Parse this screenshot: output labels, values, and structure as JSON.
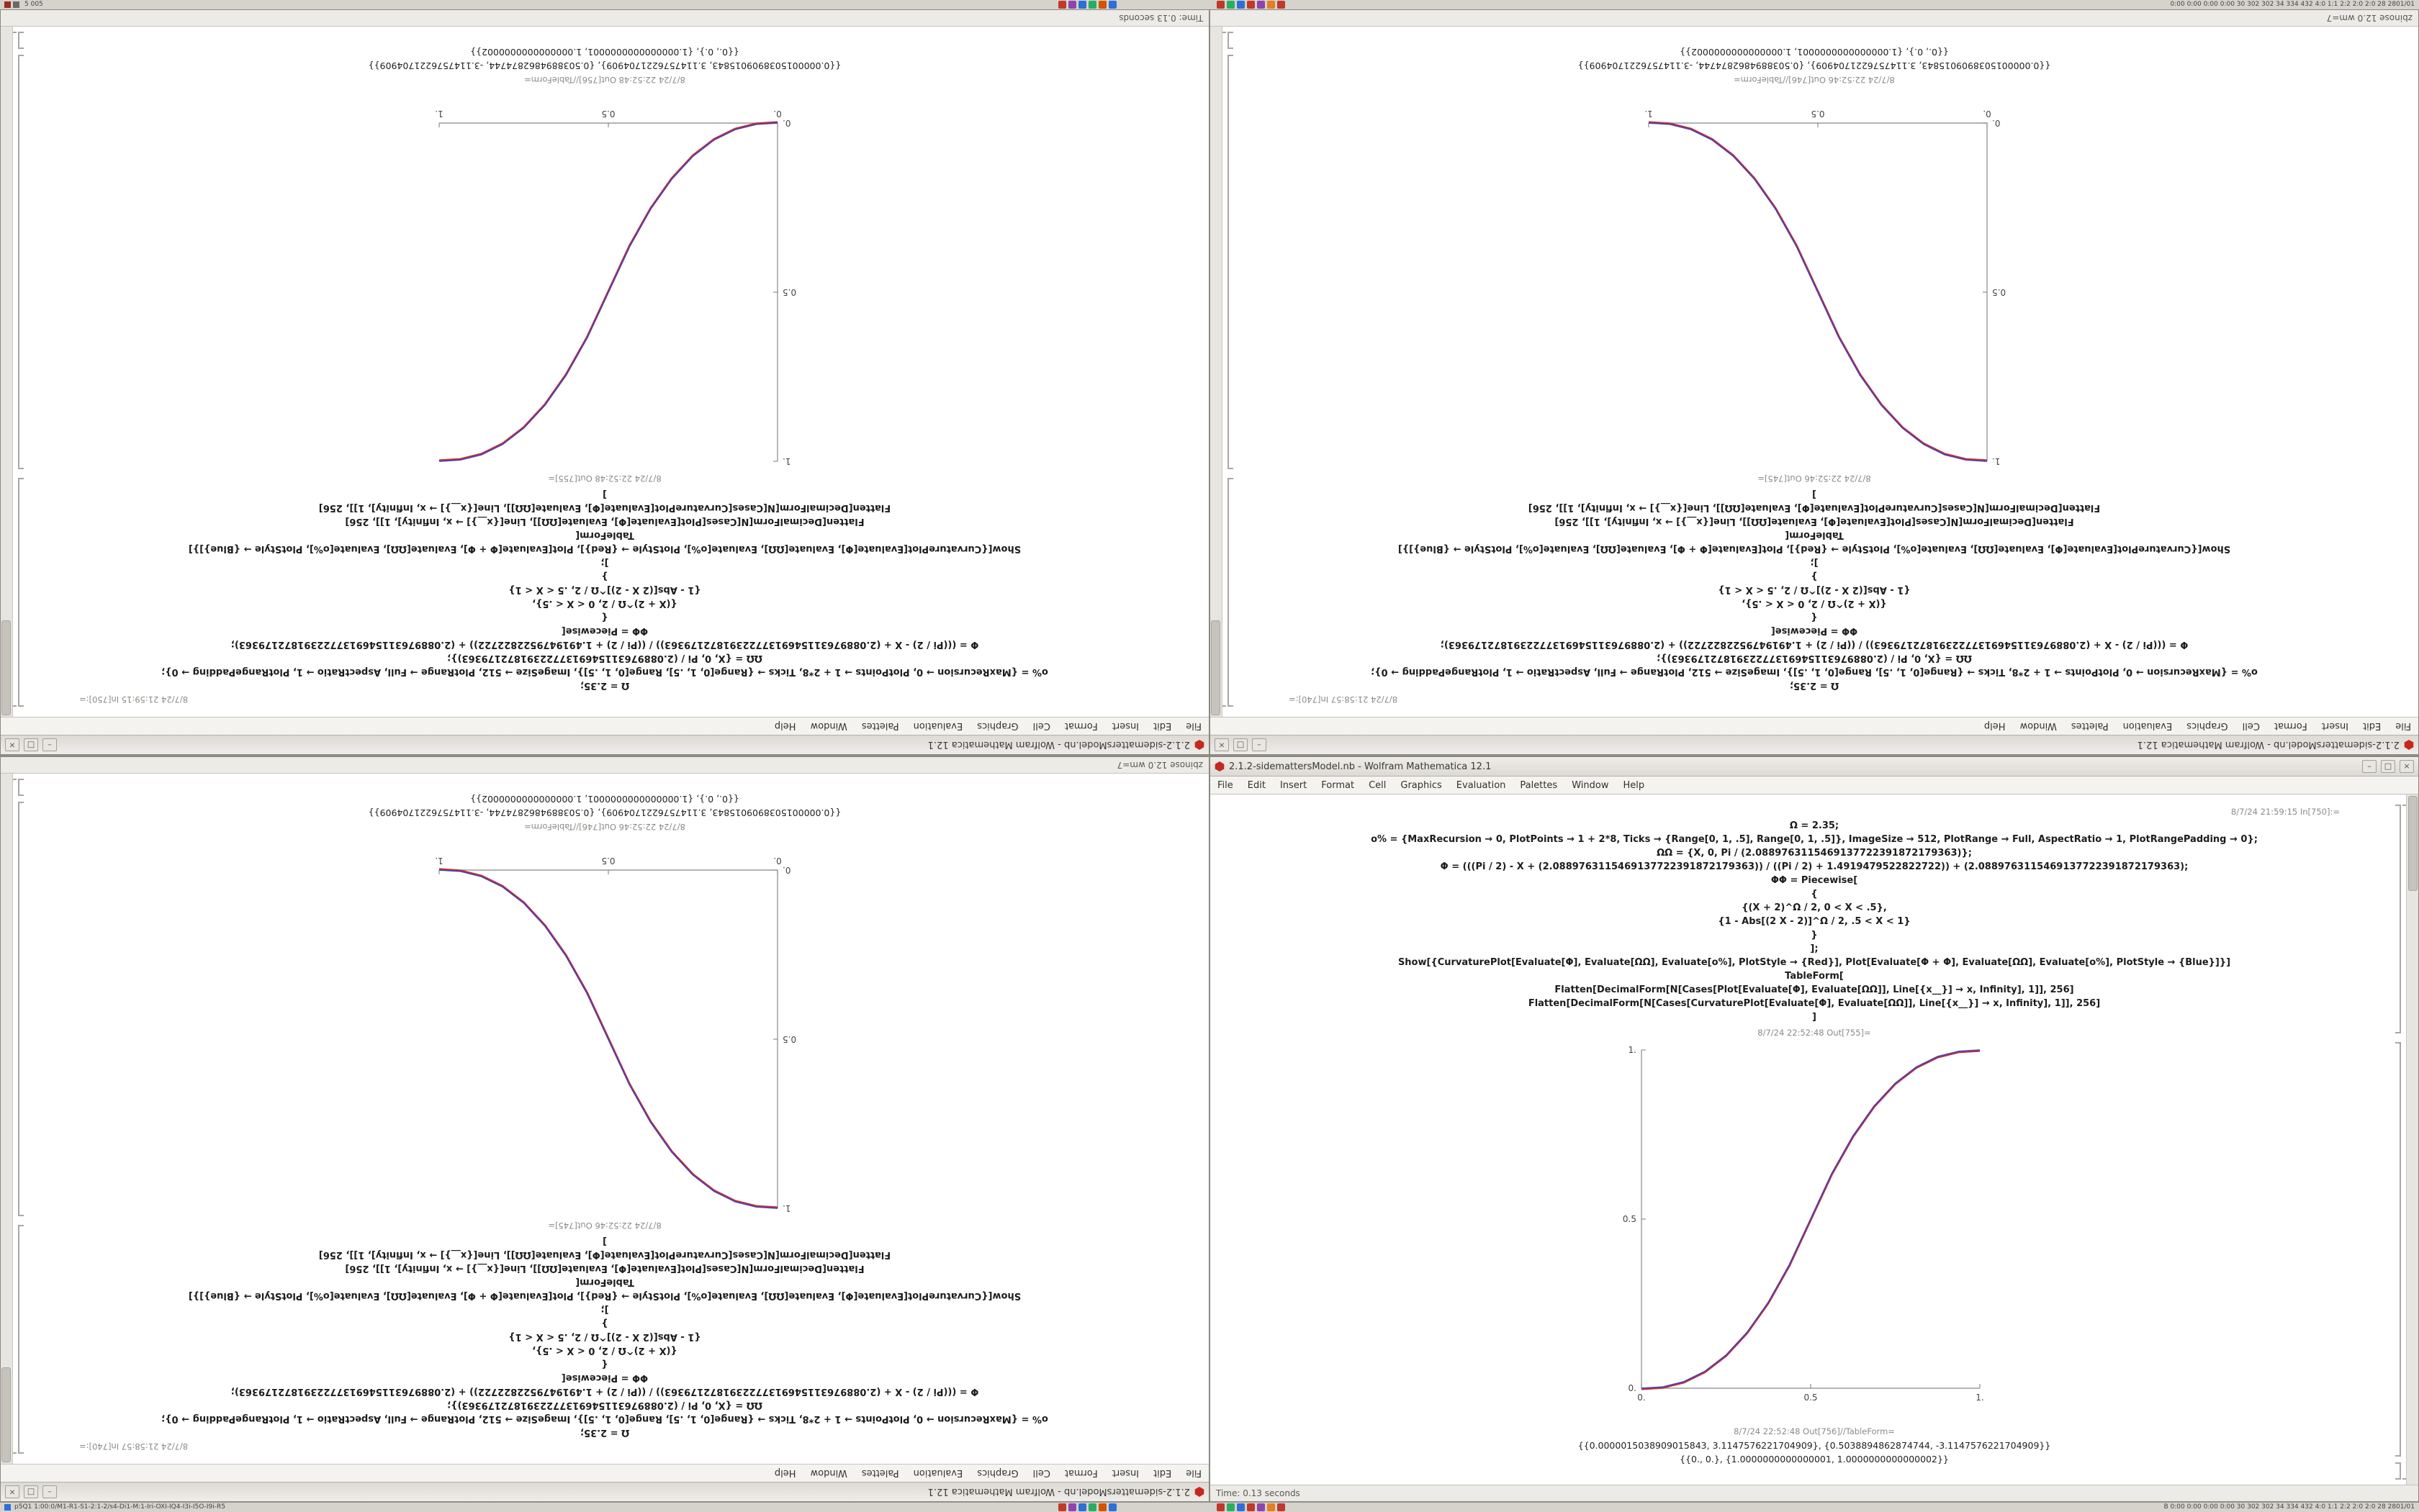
{
  "chrome": {
    "minimize": "–",
    "maximize": "□",
    "close": "×",
    "menu": [
      "File",
      "Edit",
      "Insert",
      "Format",
      "Cell",
      "Graphics",
      "Evaluation",
      "Palettes",
      "Window",
      "Help"
    ]
  },
  "taskbar_top": {
    "left_text": "5 005",
    "right_text": "0:00 0:00 0:00 0:00  30 302 302 34 334 432  4:0 1:1 2:2 2:0 2:0  28 2801/01",
    "tray1": [
      "#c0392b",
      "#8e44ad",
      "#2e6fd8",
      "#27ae60",
      "#d35400",
      "#2e6fd8"
    ],
    "tray2": [
      "#c0392b",
      "#27ae60",
      "#2e6fd8",
      "#c0392b",
      "#8e44ad",
      "#e67e22",
      "#c0392b"
    ]
  },
  "taskbar_bottom": {
    "left_text": "p5Q1  1:00:0/M1-R1-S1-2:1-2/s4-Di1-M:1-Iri-OXI-IQ4-I3i-I5O-I9i-R5",
    "right_text": "B 0:00 0:00 0:00 0:00  30 302 302 34 334 432  4:0 1:1 2:2 2:0 2:0  28 2801/01",
    "tray1": [
      "#c0392b",
      "#8e44ad",
      "#2e6fd8",
      "#27ae60",
      "#d35400",
      "#2e6fd8"
    ],
    "tray2": [
      "#c0392b",
      "#27ae60",
      "#2e6fd8",
      "#c0392b",
      "#8e44ad",
      "#e67e22",
      "#c0392b"
    ]
  },
  "notebook_a": {
    "title": "2.1.2-sidemattersModel.nb - Wolfram Mathematica 12.1",
    "in_header": "8/7/24 21:59:15 In[750]:=",
    "code": [
      "Ω = 2.35;",
      "o% = {MaxRecursion → 0, PlotPoints → 1 + 2*8, Ticks → {Range[0, 1, .5], Range[0, 1, .5]}, ImageSize → 512, PlotRange → Full, AspectRatio → 1, PlotRangePadding → 0};",
      "ΩΩ = {X, 0, Pi / (2.0889763115469137722391872179363)};",
      "Φ = (((Pi / 2) - X + (2.0889763115469137722391872179363)) / ((Pi / 2) + 1.4919479522822722)) + (2.0889763115469137722391872179363);",
      "ΦΦ = Piecewise[",
      "{",
      "{(X + 2)^Ω / 2, 0 < X < .5},",
      "{1 - Abs[(2 X - 2)]^Ω / 2, .5 < X < 1}",
      "}",
      "];",
      "Show[{CurvaturePlot[Evaluate[Φ], Evaluate[ΩΩ], Evaluate[o%], PlotStyle → {Red}], Plot[Evaluate[Φ + Φ], Evaluate[ΩΩ], Evaluate[o%], PlotStyle → {Blue}]}]",
      "TableForm[",
      "Flatten[DecimalForm[N[Cases[Plot[Evaluate[Φ], Evaluate[ΩΩ]], Line[{x__}] → x, Infinity], 1]], 256]",
      "Flatten[DecimalForm[N[Cases[CurvaturePlot[Evaluate[Φ], Evaluate[ΩΩ]], Line[{x__}] → x, Infinity], 1]], 256]",
      "]"
    ],
    "out1_label": "8/7/24 22:52:48 Out[755]=",
    "out2_label": "8/7/24 22:52:48 Out[756]//TableForm=",
    "out_lines": [
      "{{0.0000015038909015843, 3.1147576221704909}, {0.5038894862874744, -3.1147576221704909}}",
      "{{0., 0.}, {1.0000000000000001, 1.0000000000000002}}"
    ],
    "status": "Time: 0.13 seconds",
    "plot": {
      "type": "line",
      "direction": "ascending",
      "xticks": [
        "0.",
        "0.5",
        "1."
      ],
      "yticks": [
        "0.",
        "0.5",
        "1."
      ],
      "tick_values": [
        0,
        0.5,
        1
      ],
      "series_styles": [
        "Red",
        "Blue"
      ],
      "red": "#c23030",
      "blue": "#4040c2",
      "points": [
        [
          0,
          0
        ],
        [
          0.0625,
          0.0038
        ],
        [
          0.125,
          0.0193
        ],
        [
          0.1875,
          0.0499
        ],
        [
          0.25,
          0.0981
        ],
        [
          0.3125,
          0.1657
        ],
        [
          0.375,
          0.2543
        ],
        [
          0.4375,
          0.3653
        ],
        [
          0.5,
          0.5
        ],
        [
          0.5625,
          0.6347
        ],
        [
          0.625,
          0.7457
        ],
        [
          0.6875,
          0.8343
        ],
        [
          0.75,
          0.9019
        ],
        [
          0.8125,
          0.9501
        ],
        [
          0.875,
          0.9807
        ],
        [
          0.9375,
          0.9962
        ],
        [
          1,
          1
        ]
      ]
    }
  },
  "notebook_b": {
    "title": "2.1.2-sidemattersModel.nb - Wolfram Mathematica 12.1",
    "in_header": "8/7/24 21:58:57 In[740]:=",
    "code": [
      "Ω = 2.35;",
      "o% = {MaxRecursion → 0, PlotPoints → 1 + 2*8, Ticks → {Range[0, 1, .5], Range[0, 1, .5]}, ImageSize → 512, PlotRange → Full, AspectRatio → 1, PlotRangePadding → 0};",
      "ΩΩ = {X, 0, Pi / (2.0889763115469137722391872179363)};",
      "Φ = (((Pi / 2) - X + (2.0889763115469137722391872179363)) / ((Pi / 2) + 1.4919479522822722)) + (2.0889763115469137722391872179363);",
      "ΦΦ = Piecewise[",
      "{",
      "{(X + 2)^Ω / 2, 0 < X < .5},",
      "{1 - Abs[(2 X - 2)]^Ω / 2, .5 < X < 1}",
      "}",
      "];",
      "Show[{CurvaturePlot[Evaluate[Φ], Evaluate[ΩΩ], Evaluate[o%], PlotStyle → {Red}], Plot[Evaluate[Φ + Φ], Evaluate[ΩΩ], Evaluate[o%], PlotStyle → {Blue}]}]",
      "TableForm[",
      "Flatten[DecimalForm[N[Cases[Plot[Evaluate[Φ], Evaluate[ΩΩ]], Line[{x__}] → x, Infinity], 1]], 256]",
      "Flatten[DecimalForm[N[Cases[CurvaturePlot[Evaluate[Φ], Evaluate[ΩΩ]], Line[{x__}] → x, Infinity], 1]], 256]",
      "]"
    ],
    "out1_label": "8/7/24 22:52:46 Out[745]=",
    "out2_label": "8/7/24 22:52:46 Out[746]//TableForm=",
    "out_lines": [
      "{{0.0000015038909015843, 3.1147576221704909}, {0.5038894862874744, -3.1147576221704909}}",
      "{{0., 0.}, {1.0000000000000001, 1.0000000000000002}}"
    ],
    "status": "zbinose 12.0 wm=7",
    "plot": {
      "type": "line",
      "direction": "descending",
      "xticks": [
        "0.",
        "0.5",
        "1."
      ],
      "yticks": [
        "0.",
        "0.5",
        "1."
      ],
      "tick_values": [
        0,
        0.5,
        1
      ],
      "series_styles": [
        "Red",
        "Blue"
      ],
      "red": "#c23030",
      "blue": "#4040c2",
      "points": [
        [
          0,
          1
        ],
        [
          0.0625,
          0.9962
        ],
        [
          0.125,
          0.9807
        ],
        [
          0.1875,
          0.9501
        ],
        [
          0.25,
          0.9019
        ],
        [
          0.3125,
          0.8343
        ],
        [
          0.375,
          0.7457
        ],
        [
          0.4375,
          0.6347
        ],
        [
          0.5,
          0.5
        ],
        [
          0.5625,
          0.3653
        ],
        [
          0.625,
          0.2543
        ],
        [
          0.6875,
          0.1657
        ],
        [
          0.75,
          0.0981
        ],
        [
          0.8125,
          0.0499
        ],
        [
          0.875,
          0.0193
        ],
        [
          0.9375,
          0.0038
        ],
        [
          1,
          0
        ]
      ]
    }
  },
  "windows": [
    {
      "slot": "slot-tl",
      "notebook": "notebook_a",
      "rotated": true
    },
    {
      "slot": "slot-tr",
      "notebook": "notebook_b",
      "rotated": true
    },
    {
      "slot": "slot-bl",
      "notebook": "notebook_b",
      "rotated": true
    },
    {
      "slot": "slot-br",
      "notebook": "notebook_a",
      "rotated": false
    }
  ]
}
